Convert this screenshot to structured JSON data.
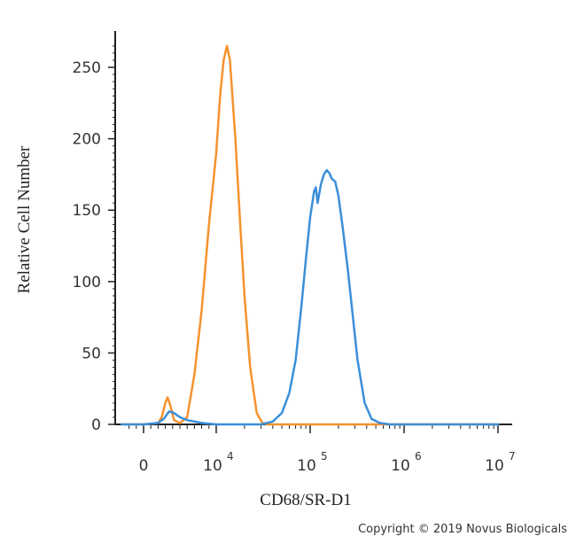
{
  "chart_data": {
    "type": "line",
    "xlabel": "CD68/SR-D1",
    "ylabel": "Relative Cell Number",
    "x_scale": "biexponential",
    "y_ticks": [
      {
        "value": 0,
        "label": "0"
      },
      {
        "value": 50,
        "label": "50"
      },
      {
        "value": 100,
        "label": "100"
      },
      {
        "value": 150,
        "label": "150"
      },
      {
        "value": 200,
        "label": "200"
      },
      {
        "value": 250,
        "label": "250"
      }
    ],
    "x_ticks": [
      {
        "value": 0,
        "base": "0",
        "exponent": ""
      },
      {
        "value": 10000,
        "base": "10",
        "exponent": "4"
      },
      {
        "value": 100000,
        "base": "10",
        "exponent": "5"
      },
      {
        "value": 1000000,
        "base": "10",
        "exponent": "6"
      },
      {
        "value": 10000000,
        "base": "10",
        "exponent": "7"
      }
    ],
    "ylim": [
      0,
      270
    ],
    "series": [
      {
        "color": "#f5922f",
        "points": [
          [
            -3000,
            0
          ],
          [
            0,
            0
          ],
          [
            2000,
            1
          ],
          [
            2500,
            5
          ],
          [
            3000,
            15
          ],
          [
            3300,
            19
          ],
          [
            3700,
            13
          ],
          [
            4200,
            3
          ],
          [
            5000,
            1
          ],
          [
            6000,
            5
          ],
          [
            7000,
            35
          ],
          [
            8000,
            80
          ],
          [
            9000,
            140
          ],
          [
            10000,
            190
          ],
          [
            11000,
            230
          ],
          [
            12000,
            255
          ],
          [
            13000,
            265
          ],
          [
            14000,
            255
          ],
          [
            16000,
            200
          ],
          [
            18000,
            140
          ],
          [
            20000,
            90
          ],
          [
            23000,
            40
          ],
          [
            27000,
            8
          ],
          [
            31000,
            1
          ],
          [
            35000,
            0
          ],
          [
            10000000,
            0
          ]
        ]
      },
      {
        "color": "#3b8fd9",
        "points": [
          [
            -3000,
            0
          ],
          [
            0,
            0
          ],
          [
            2000,
            1
          ],
          [
            2800,
            4
          ],
          [
            3500,
            9
          ],
          [
            4200,
            8
          ],
          [
            5000,
            5
          ],
          [
            6000,
            3
          ],
          [
            8000,
            1
          ],
          [
            10000,
            0
          ],
          [
            30000,
            0
          ],
          [
            40000,
            2
          ],
          [
            50000,
            8
          ],
          [
            60000,
            22
          ],
          [
            70000,
            45
          ],
          [
            80000,
            80
          ],
          [
            90000,
            115
          ],
          [
            100000,
            145
          ],
          [
            110000,
            163
          ],
          [
            115000,
            166
          ],
          [
            120000,
            155
          ],
          [
            130000,
            168
          ],
          [
            140000,
            175
          ],
          [
            150000,
            178
          ],
          [
            160000,
            176
          ],
          [
            170000,
            172
          ],
          [
            185000,
            170
          ],
          [
            200000,
            160
          ],
          [
            220000,
            140
          ],
          [
            250000,
            110
          ],
          [
            280000,
            80
          ],
          [
            320000,
            45
          ],
          [
            380000,
            15
          ],
          [
            450000,
            4
          ],
          [
            550000,
            1
          ],
          [
            700000,
            0
          ],
          [
            10000000,
            0
          ]
        ]
      }
    ]
  },
  "copyright": "Copyright © 2019 Novus Biologicals"
}
